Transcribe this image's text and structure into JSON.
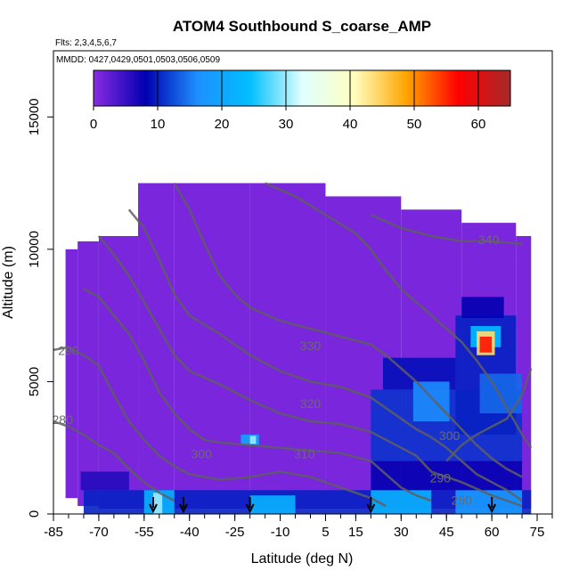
{
  "chart_data": {
    "type": "heatmap",
    "title": "ATOM4 Southbound S_coarse_AMP",
    "annotations": [
      "Flts: 2,3,4,5,6,7",
      "MMDD: 0427,0429,0501,0503,0506,0509"
    ],
    "xlabel": "Latitude (deg N)",
    "ylabel": "Altitude (m)",
    "xlim": [
      -85,
      80
    ],
    "ylim": [
      0,
      17500
    ],
    "x_ticks": [
      -85,
      -70,
      -55,
      -40,
      -25,
      -10,
      5,
      15,
      30,
      45,
      60,
      75
    ],
    "y_ticks": [
      0,
      5000,
      10000,
      15000
    ],
    "colorbar": {
      "range": [
        0,
        65
      ],
      "ticks": [
        0,
        10,
        20,
        30,
        40,
        50,
        60
      ],
      "colors": [
        "#8a2be2",
        "#0000b0",
        "#1e90ff",
        "#00bfff",
        "#e0ffff",
        "#ffffc0",
        "#ffa500",
        "#ff0000",
        "#a52a2a"
      ]
    },
    "background_value": 1,
    "coverage": [
      {
        "x": [
          -81,
          -77
        ],
        "y": [
          600,
          10000
        ]
      },
      {
        "x": [
          -77,
          -70
        ],
        "y": [
          300,
          10300
        ]
      },
      {
        "x": [
          -70,
          -57
        ],
        "y": [
          200,
          10500
        ]
      },
      {
        "x": [
          -57,
          -45
        ],
        "y": [
          200,
          12500
        ]
      },
      {
        "x": [
          -45,
          -20
        ],
        "y": [
          200,
          12500
        ]
      },
      {
        "x": [
          -20,
          5
        ],
        "y": [
          200,
          12500
        ]
      },
      {
        "x": [
          5,
          30
        ],
        "y": [
          200,
          12000
        ]
      },
      {
        "x": [
          30,
          50
        ],
        "y": [
          200,
          11500
        ]
      },
      {
        "x": [
          50,
          68
        ],
        "y": [
          200,
          11000
        ]
      },
      {
        "x": [
          68,
          73
        ],
        "y": [
          200,
          10500
        ]
      }
    ],
    "patches": [
      {
        "x": [
          -75,
          73
        ],
        "y": [
          0,
          900
        ],
        "value": 10
      },
      {
        "x": [
          -55,
          -45
        ],
        "y": [
          0,
          900
        ],
        "value": 22
      },
      {
        "x": [
          -52,
          -49
        ],
        "y": [
          0,
          800
        ],
        "value": 30
      },
      {
        "x": [
          -20,
          -5
        ],
        "y": [
          0,
          700
        ],
        "value": 22
      },
      {
        "x": [
          20,
          40
        ],
        "y": [
          0,
          900
        ],
        "value": 22
      },
      {
        "x": [
          48,
          70
        ],
        "y": [
          0,
          900
        ],
        "value": 18
      },
      {
        "x": [
          -76,
          -60
        ],
        "y": [
          900,
          1600
        ],
        "value": 6
      },
      {
        "x": [
          -23,
          -17
        ],
        "y": [
          2600,
          3000
        ],
        "value": 20
      },
      {
        "x": [
          -20,
          -18
        ],
        "y": [
          2650,
          2950
        ],
        "value": 30
      },
      {
        "x": [
          20,
          70
        ],
        "y": [
          900,
          2000
        ],
        "value": 8
      },
      {
        "x": [
          20,
          70
        ],
        "y": [
          2000,
          4700
        ],
        "value": 11
      },
      {
        "x": [
          24,
          48
        ],
        "y": [
          4700,
          5900
        ],
        "value": 9
      },
      {
        "x": [
          34,
          46
        ],
        "y": [
          3500,
          5000
        ],
        "value": 16
      },
      {
        "x": [
          48,
          68
        ],
        "y": [
          3000,
          7500
        ],
        "value": 10
      },
      {
        "x": [
          56,
          70
        ],
        "y": [
          3800,
          5300
        ],
        "value": 14
      },
      {
        "x": [
          50,
          64
        ],
        "y": [
          7400,
          8200
        ],
        "value": 8
      },
      {
        "x": [
          53,
          63
        ],
        "y": [
          6300,
          7100
        ],
        "value": 24
      },
      {
        "x": [
          55,
          61
        ],
        "y": [
          6000,
          6900
        ],
        "value": 44
      },
      {
        "x": [
          56,
          60
        ],
        "y": [
          6100,
          6700
        ],
        "value": 56
      }
    ],
    "contours": [
      {
        "label": "280",
        "points": [
          [
            -85,
            3500
          ],
          [
            -80,
            3300
          ],
          [
            -75,
            3000
          ],
          [
            -70,
            2600
          ],
          [
            -65,
            2300
          ],
          [
            -60,
            1700
          ],
          [
            -55,
            1200
          ],
          [
            -50,
            800
          ],
          [
            -45,
            500
          ]
        ]
      },
      {
        "label": "290",
        "points": [
          [
            -85,
            6200
          ],
          [
            -80,
            6300
          ],
          [
            -75,
            6000
          ],
          [
            -70,
            5600
          ],
          [
            -65,
            4500
          ],
          [
            -60,
            3500
          ],
          [
            -55,
            2800
          ],
          [
            -50,
            2200
          ],
          [
            -45,
            1800
          ],
          [
            -40,
            1500
          ],
          [
            -30,
            1300
          ],
          [
            -20,
            1400
          ],
          [
            -10,
            1600
          ],
          [
            0,
            1400
          ],
          [
            10,
            1000
          ],
          [
            20,
            600
          ],
          [
            25,
            300
          ]
        ]
      },
      {
        "label": "300",
        "points": [
          [
            -75,
            8500
          ],
          [
            -70,
            8200
          ],
          [
            -65,
            7500
          ],
          [
            -60,
            6800
          ],
          [
            -55,
            5800
          ],
          [
            -50,
            4600
          ],
          [
            -45,
            3800
          ],
          [
            -40,
            3200
          ],
          [
            -35,
            2800
          ],
          [
            -30,
            2700
          ],
          [
            -20,
            2600
          ],
          [
            -10,
            2500
          ],
          [
            0,
            2400
          ],
          [
            10,
            2300
          ],
          [
            20,
            2000
          ],
          [
            25,
            1500
          ],
          [
            30,
            1000
          ],
          [
            35,
            700
          ],
          [
            40,
            500
          ]
        ]
      },
      {
        "label": "300",
        "points": [
          [
            45,
            2000
          ],
          [
            50,
            2600
          ],
          [
            55,
            3000
          ],
          [
            60,
            3300
          ],
          [
            65,
            3600
          ],
          [
            70,
            4500
          ],
          [
            73,
            5500
          ]
        ]
      },
      {
        "label": "310",
        "points": [
          [
            -70,
            10500
          ],
          [
            -65,
            9800
          ],
          [
            -60,
            9000
          ],
          [
            -55,
            8000
          ],
          [
            -50,
            7000
          ],
          [
            -45,
            6000
          ],
          [
            -40,
            5400
          ],
          [
            -30,
            4900
          ],
          [
            -20,
            4300
          ],
          [
            -10,
            3800
          ],
          [
            0,
            3500
          ],
          [
            10,
            3400
          ],
          [
            20,
            3100
          ],
          [
            25,
            2800
          ],
          [
            30,
            2500
          ],
          [
            35,
            2200
          ],
          [
            40,
            1600
          ],
          [
            50,
            1200
          ],
          [
            60,
            700
          ],
          [
            70,
            300
          ]
        ]
      },
      {
        "label": "320",
        "points": [
          [
            -60,
            11500
          ],
          [
            -55,
            10800
          ],
          [
            -50,
            9600
          ],
          [
            -45,
            8300
          ],
          [
            -40,
            7500
          ],
          [
            -30,
            6800
          ],
          [
            -20,
            6000
          ],
          [
            -10,
            5400
          ],
          [
            0,
            5000
          ],
          [
            10,
            4800
          ],
          [
            20,
            4400
          ],
          [
            25,
            4000
          ],
          [
            30,
            3600
          ],
          [
            35,
            3200
          ],
          [
            40,
            2900
          ],
          [
            45,
            2500
          ],
          [
            50,
            2000
          ],
          [
            55,
            1500
          ],
          [
            60,
            1200
          ],
          [
            65,
            900
          ],
          [
            70,
            500
          ]
        ]
      },
      {
        "label": "330",
        "points": [
          [
            -45,
            12500
          ],
          [
            -40,
            11500
          ],
          [
            -35,
            10200
          ],
          [
            -30,
            9000
          ],
          [
            -25,
            8300
          ],
          [
            -20,
            7800
          ],
          [
            -10,
            7300
          ],
          [
            0,
            7000
          ],
          [
            10,
            6700
          ],
          [
            20,
            6400
          ],
          [
            25,
            6000
          ],
          [
            30,
            5500
          ],
          [
            35,
            5000
          ],
          [
            40,
            4400
          ],
          [
            45,
            3800
          ],
          [
            50,
            3200
          ],
          [
            55,
            2600
          ],
          [
            60,
            2100
          ],
          [
            65,
            1700
          ],
          [
            70,
            1400
          ]
        ]
      },
      {
        "label": "340",
        "points": [
          [
            -15,
            12500
          ],
          [
            -5,
            12000
          ],
          [
            5,
            11300
          ],
          [
            15,
            10600
          ],
          [
            20,
            10000
          ],
          [
            25,
            9200
          ],
          [
            30,
            8500
          ],
          [
            35,
            8000
          ],
          [
            40,
            7500
          ],
          [
            45,
            7000
          ],
          [
            50,
            6500
          ],
          [
            55,
            5800
          ],
          [
            60,
            5000
          ],
          [
            65,
            4000
          ],
          [
            70,
            3000
          ],
          [
            73,
            2500
          ]
        ]
      },
      {
        "label": "340",
        "points": [
          [
            20,
            11300
          ],
          [
            30,
            10800
          ],
          [
            40,
            10500
          ],
          [
            50,
            10300
          ],
          [
            60,
            10300
          ],
          [
            70,
            10200
          ]
        ]
      }
    ],
    "contour_labels": [
      {
        "text": "280",
        "x": -82,
        "y": 3400
      },
      {
        "text": "290",
        "x": -80,
        "y": 6000
      },
      {
        "text": "300",
        "x": -36,
        "y": 2100
      },
      {
        "text": "310",
        "x": -2,
        "y": 2100
      },
      {
        "text": "320",
        "x": 0,
        "y": 4000
      },
      {
        "text": "330",
        "x": 0,
        "y": 6200
      },
      {
        "text": "340",
        "x": 59,
        "y": 10200
      },
      {
        "text": "300",
        "x": 46,
        "y": 2800
      },
      {
        "text": "290",
        "x": 43,
        "y": 1200
      },
      {
        "text": "280",
        "x": 50,
        "y": 350
      }
    ],
    "flight_markers_x": [
      -52,
      -42,
      -20,
      20,
      60
    ]
  }
}
